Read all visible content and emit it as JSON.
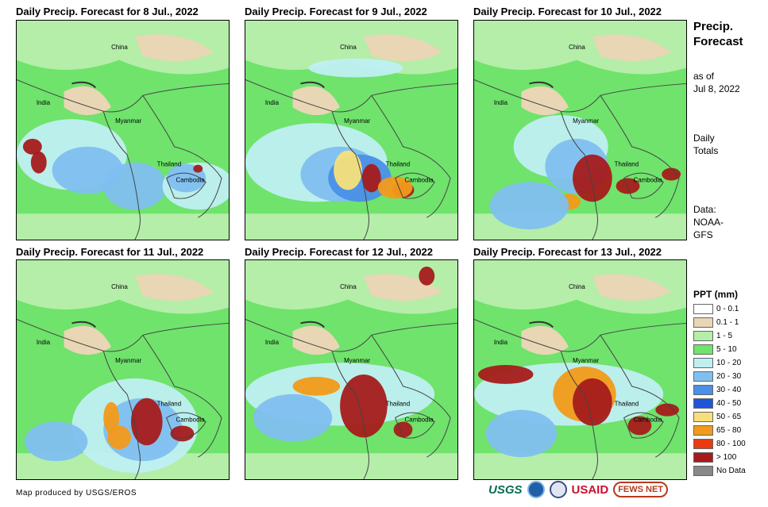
{
  "panels": [
    {
      "title": "Daily Precip. Forecast for 8 Jul., 2022"
    },
    {
      "title": "Daily Precip. Forecast for 9 Jul., 2022"
    },
    {
      "title": "Daily Precip. Forecast for 10 Jul., 2022"
    },
    {
      "title": "Daily Precip. Forecast for 11 Jul., 2022"
    },
    {
      "title": "Daily Precip. Forecast for 12 Jul., 2022"
    },
    {
      "title": "Daily Precip. Forecast for 13 Jul., 2022"
    }
  ],
  "map_labels": {
    "china": "China",
    "india": "India",
    "myanmar": "Myanmar",
    "thailand": "Thailand",
    "cambodia": "Cambodia"
  },
  "side": {
    "title_line1": "Precip.",
    "title_line2": "Forecast",
    "asof_line1": "as of",
    "asof_line2": "Jul 8, 2022",
    "daily_line1": "Daily",
    "daily_line2": "Totals",
    "data_line1": "Data:",
    "data_line2": "NOAA-",
    "data_line3": "GFS"
  },
  "legend": {
    "title": "PPT (mm)",
    "items": [
      {
        "label": "0 - 0.1",
        "color": "#ffffff"
      },
      {
        "label": "0.1 - 1",
        "color": "#e8d6b5"
      },
      {
        "label": "1 - 5",
        "color": "#b4eea8"
      },
      {
        "label": "5 - 10",
        "color": "#6fe36c"
      },
      {
        "label": "10 - 20",
        "color": "#bfeff2"
      },
      {
        "label": "20 - 30",
        "color": "#7fbff0"
      },
      {
        "label": "30 - 40",
        "color": "#4a90e6"
      },
      {
        "label": "40 - 50",
        "color": "#1f55d6"
      },
      {
        "label": "50 - 65",
        "color": "#f7e07a"
      },
      {
        "label": "65 - 80",
        "color": "#f29a1a"
      },
      {
        "label": "80 - 100",
        "color": "#ea3a10"
      },
      {
        "label": "> 100",
        "color": "#a51b1b"
      },
      {
        "label": "No Data",
        "color": "#888888"
      }
    ]
  },
  "credit": "Map produced by USGS/EROS",
  "logos": {
    "usgs": "USGS",
    "usaid": "USAID",
    "fews": "FEWS NET"
  }
}
